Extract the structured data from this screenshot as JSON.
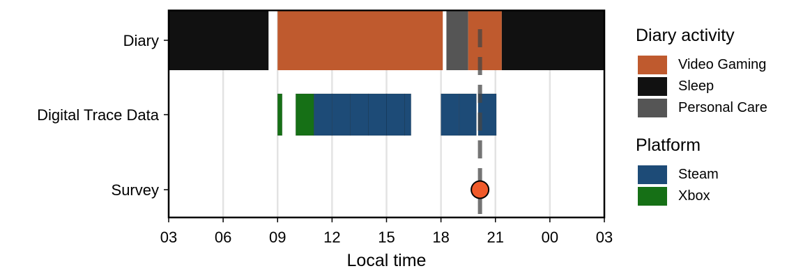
{
  "chart_data": {
    "type": "timeline",
    "xlabel": "Local time",
    "x_ticks": [
      "03",
      "06",
      "09",
      "12",
      "15",
      "18",
      "21",
      "00",
      "03"
    ],
    "x_range_hours": [
      3,
      27
    ],
    "rows": [
      "Diary",
      "Digital Trace Data",
      "Survey"
    ],
    "diary_segments": [
      {
        "activity": "Sleep",
        "start": 3.0,
        "end": 8.5
      },
      {
        "activity": "Video Gaming",
        "start": 9.0,
        "end": 18.1
      },
      {
        "activity": "Personal Care",
        "start": 18.3,
        "end": 19.5
      },
      {
        "activity": "Video Gaming",
        "start": 19.5,
        "end": 21.35
      },
      {
        "activity": "Sleep",
        "start": 21.35,
        "end": 27.0
      }
    ],
    "trace_segments": [
      {
        "platform": "Xbox",
        "start": 9.0,
        "end": 9.25
      },
      {
        "platform": "Xbox",
        "start": 10.0,
        "end": 11.0
      },
      {
        "platform": "Steam",
        "start": 11.0,
        "end": 12.0
      },
      {
        "platform": "Steam",
        "start": 12.0,
        "end": 13.0
      },
      {
        "platform": "Steam",
        "start": 13.0,
        "end": 14.0
      },
      {
        "platform": "Steam",
        "start": 14.0,
        "end": 15.0
      },
      {
        "platform": "Steam",
        "start": 15.0,
        "end": 16.0
      },
      {
        "platform": "Steam",
        "start": 16.0,
        "end": 16.35
      },
      {
        "platform": "Steam",
        "start": 18.0,
        "end": 19.0
      },
      {
        "platform": "Steam",
        "start": 19.0,
        "end": 19.95
      },
      {
        "platform": "Steam",
        "start": 20.05,
        "end": 21.05
      }
    ],
    "survey_time": 20.15,
    "survey_color": "#f05a2a",
    "legend": {
      "diary_title": "Diary activity",
      "diary": [
        {
          "label": "Video Gaming",
          "color": "#bf5a2e"
        },
        {
          "label": "Sleep",
          "color": "#111111"
        },
        {
          "label": "Personal Care",
          "color": "#555555"
        }
      ],
      "platform_title": "Platform",
      "platform": [
        {
          "label": "Steam",
          "color": "#1d4b77"
        },
        {
          "label": "Xbox",
          "color": "#167016"
        }
      ]
    }
  }
}
